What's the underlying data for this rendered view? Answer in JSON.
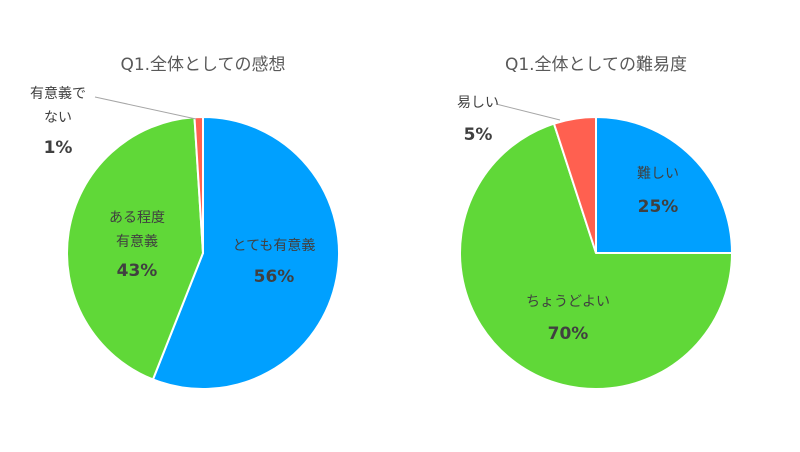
{
  "chart_data": [
    {
      "type": "pie",
      "title": "Q1.全体としての感想",
      "categories": [
        "とても有意義",
        "ある程度有意義",
        "有意義でない"
      ],
      "label_lines": [
        [
          "とても有意義"
        ],
        [
          "ある程度",
          "有意義"
        ],
        [
          "有意義で",
          "ない"
        ]
      ],
      "values": [
        56,
        43,
        1
      ],
      "percent_labels": [
        "56%",
        "43%",
        "1%"
      ],
      "colors": [
        "#00A0FF",
        "#60D838",
        "#FF6050"
      ],
      "start_angle_deg": 0,
      "direction": "clockwise",
      "legend": "none"
    },
    {
      "type": "pie",
      "title": "Q1.全体としての難易度",
      "categories": [
        "難しい",
        "ちょうどよい",
        "易しい"
      ],
      "label_lines": [
        [
          "難しい"
        ],
        [
          "ちょうどよい"
        ],
        [
          "易しい"
        ]
      ],
      "values": [
        25,
        70,
        5
      ],
      "percent_labels": [
        "25%",
        "70%",
        "5%"
      ],
      "colors": [
        "#00A0FF",
        "#60D838",
        "#FF6050"
      ],
      "start_angle_deg": 0,
      "direction": "clockwise",
      "legend": "none"
    }
  ]
}
